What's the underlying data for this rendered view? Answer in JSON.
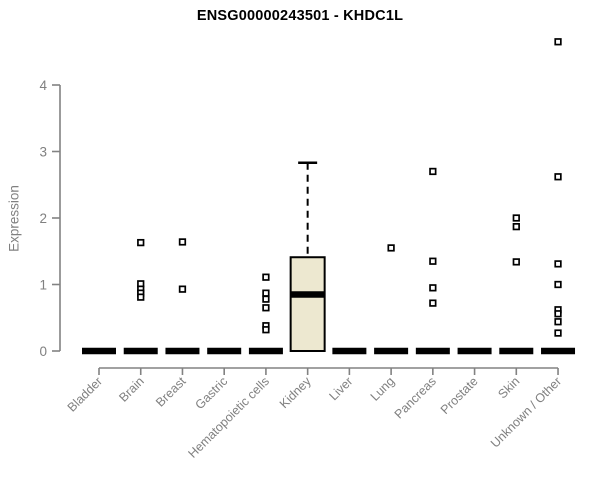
{
  "title": "ENSG00000243501 - KHDC1L",
  "chart_data": {
    "type": "boxplot",
    "title": "ENSG00000243501 - KHDC1L",
    "xlabel": "",
    "ylabel": "Expression",
    "ylim": [
      0,
      4
    ],
    "yticks": [
      0,
      1,
      2,
      3,
      4
    ],
    "grid": false,
    "legend": "none",
    "categories": [
      "Bladder",
      "Brain",
      "Breast",
      "Gastric",
      "Hematopoietic cells",
      "Kidney",
      "Liver",
      "Lung",
      "Pancreas",
      "Prostate",
      "Skin",
      "Unknown / Other"
    ],
    "colors": {
      "box_fill": "#EDE8D0",
      "box_border": "#000000",
      "median": "#000000",
      "outlier": "#000000",
      "axis_line": "#828282",
      "axis_text": "#808080",
      "title_text": "#000000",
      "background": "#ffffff"
    },
    "boxes": [
      {
        "category": "Bladder",
        "q1": 0,
        "median": 0,
        "q3": 0,
        "whisker_low": 0,
        "whisker_high": 0,
        "outliers": []
      },
      {
        "category": "Brain",
        "q1": 0,
        "median": 0,
        "q3": 0,
        "whisker_low": 0,
        "whisker_high": 0,
        "outliers": [
          1.63,
          1.01,
          0.93,
          0.87,
          0.81
        ]
      },
      {
        "category": "Breast",
        "q1": 0,
        "median": 0,
        "q3": 0,
        "whisker_low": 0,
        "whisker_high": 0,
        "outliers": [
          1.64,
          0.93
        ]
      },
      {
        "category": "Gastric",
        "q1": 0,
        "median": 0,
        "q3": 0,
        "whisker_low": 0,
        "whisker_high": 0,
        "outliers": []
      },
      {
        "category": "Hematopoietic cells",
        "q1": 0,
        "median": 0,
        "q3": 0,
        "whisker_low": 0,
        "whisker_high": 0,
        "outliers": [
          1.11,
          0.87,
          0.78,
          0.65,
          0.38,
          0.32
        ]
      },
      {
        "category": "Kidney",
        "q1": 0,
        "median": 0.85,
        "q3": 1.41,
        "whisker_low": 0,
        "whisker_high": 2.83,
        "outliers": []
      },
      {
        "category": "Liver",
        "q1": 0,
        "median": 0,
        "q3": 0,
        "whisker_low": 0,
        "whisker_high": 0,
        "outliers": []
      },
      {
        "category": "Lung",
        "q1": 0,
        "median": 0,
        "q3": 0,
        "whisker_low": 0,
        "whisker_high": 0,
        "outliers": [
          1.55
        ]
      },
      {
        "category": "Pancreas",
        "q1": 0,
        "median": 0,
        "q3": 0,
        "whisker_low": 0,
        "whisker_high": 0,
        "outliers": [
          2.7,
          1.35,
          0.95,
          0.72
        ]
      },
      {
        "category": "Prostate",
        "q1": 0,
        "median": 0,
        "q3": 0,
        "whisker_low": 0,
        "whisker_high": 0,
        "outliers": []
      },
      {
        "category": "Skin",
        "q1": 0,
        "median": 0,
        "q3": 0,
        "whisker_low": 0,
        "whisker_high": 0,
        "outliers": [
          2.0,
          1.87,
          1.34
        ]
      },
      {
        "category": "Unknown / Other",
        "q1": 0,
        "median": 0,
        "q3": 0,
        "whisker_low": 0,
        "whisker_high": 0,
        "outliers": [
          4.65,
          2.62,
          1.31,
          1.0,
          0.62,
          0.56,
          0.44,
          0.27
        ]
      }
    ]
  }
}
